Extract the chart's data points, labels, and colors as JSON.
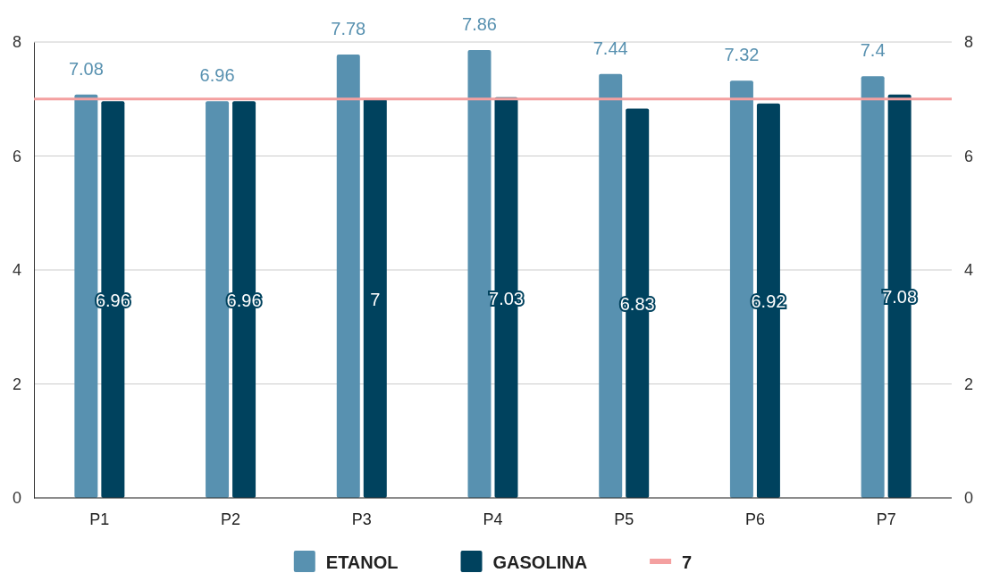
{
  "chart_data": {
    "type": "bar",
    "categories": [
      "P1",
      "P2",
      "P3",
      "P4",
      "P5",
      "P6",
      "P7"
    ],
    "series": [
      {
        "name": "ETANOL",
        "color": "#5891b0",
        "values": [
          7.08,
          6.96,
          7.78,
          7.86,
          7.44,
          7.32,
          7.4
        ]
      },
      {
        "name": "GASOLINA",
        "color": "#00425e",
        "values": [
          6.96,
          6.96,
          7,
          7.03,
          6.83,
          6.92,
          7.08
        ]
      }
    ],
    "ylim": [
      0,
      8
    ],
    "yticks": [
      0,
      2,
      4,
      6,
      8
    ],
    "y2lim": [
      0,
      8
    ],
    "y2ticks": [
      0,
      2,
      4,
      6,
      8
    ],
    "ref_lines": [
      {
        "axis": "y",
        "value": 7,
        "label": "7",
        "color": "#f4a0a0"
      }
    ],
    "data_labels": true,
    "grid": "y",
    "legend": "bottom"
  }
}
